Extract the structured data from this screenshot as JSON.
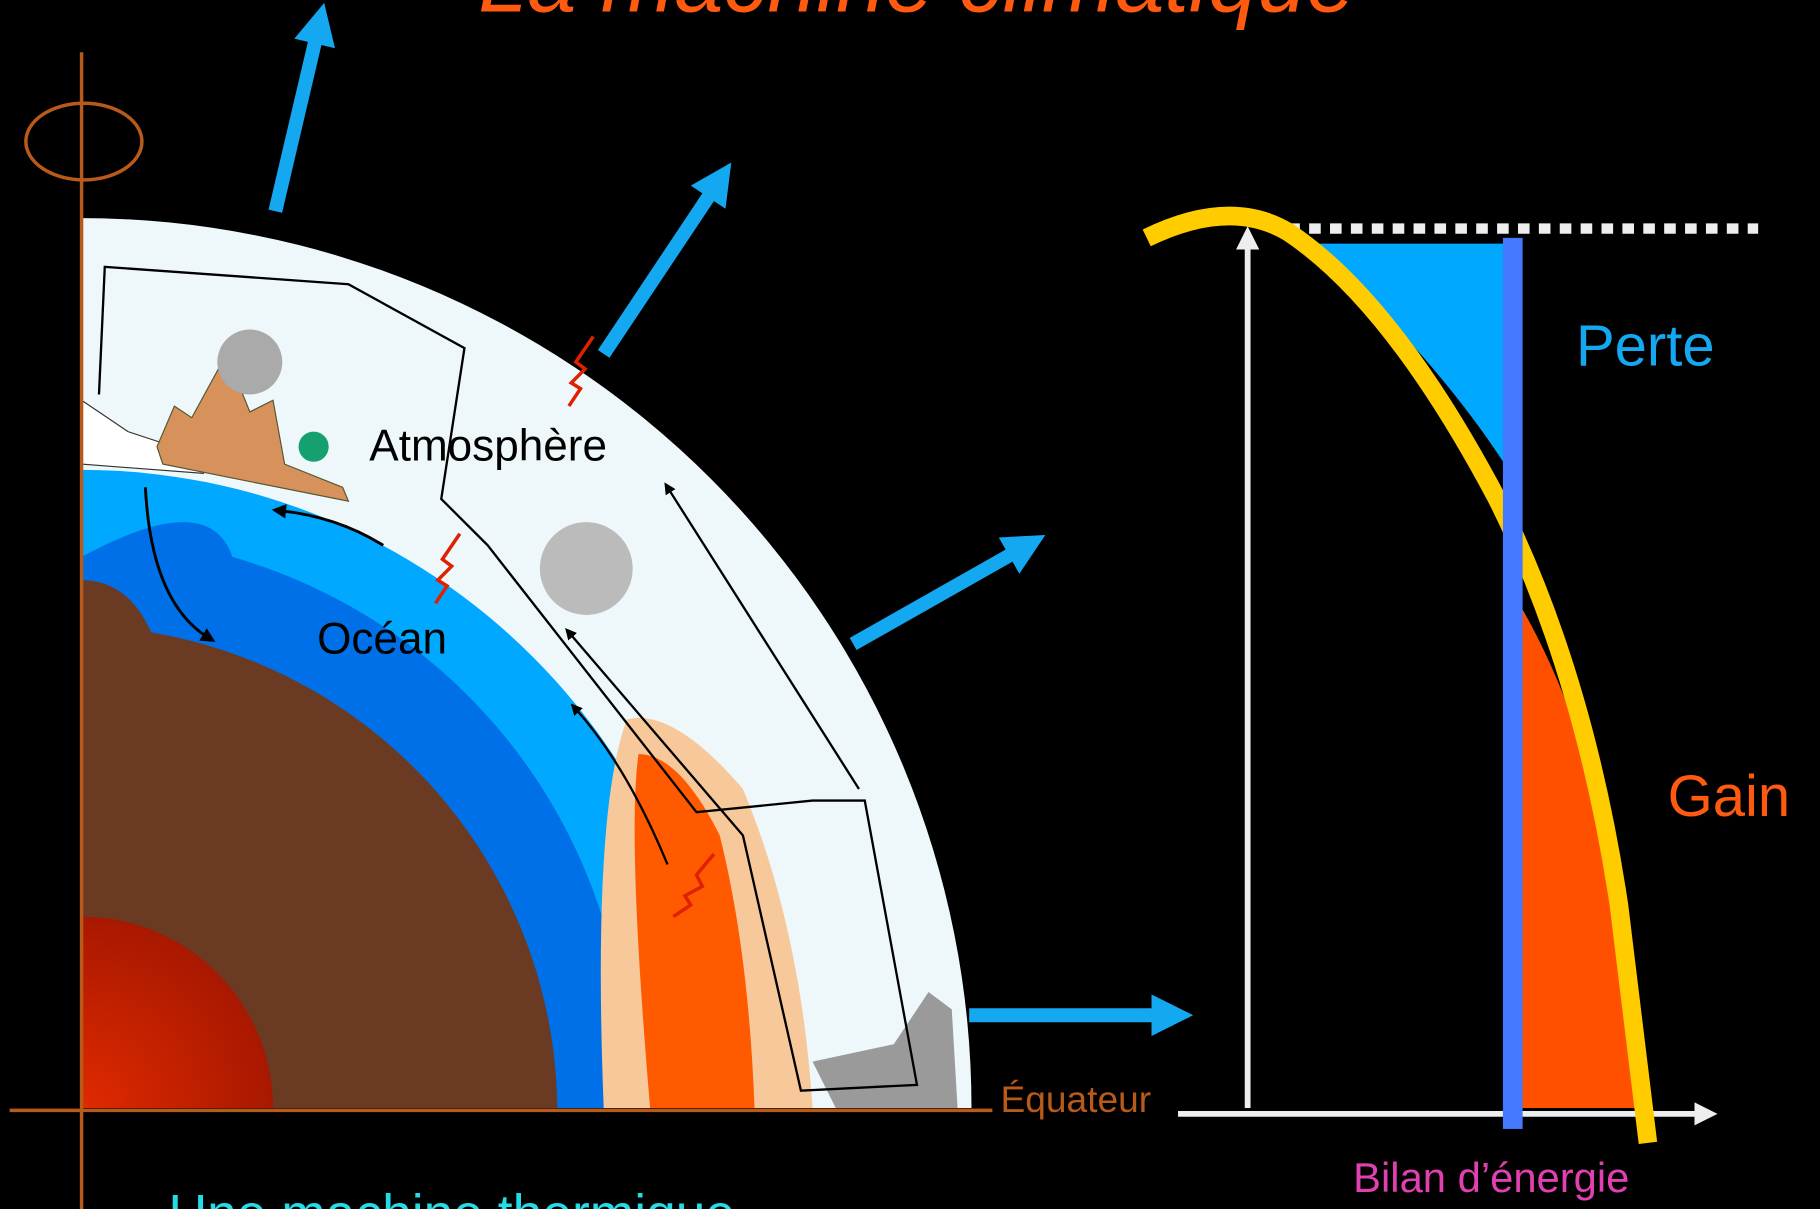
{
  "header": {
    "title": "La machine climatique"
  },
  "labels": {
    "atmosphere": "Atmosphère",
    "ocean": "Océan",
    "equator": "Équateur"
  },
  "energy_chart": {
    "loss": "Perte",
    "gain": "Gain",
    "axis_label": "Bilan d’énergie"
  },
  "footer": {
    "caption": "Une machine thermique"
  }
}
